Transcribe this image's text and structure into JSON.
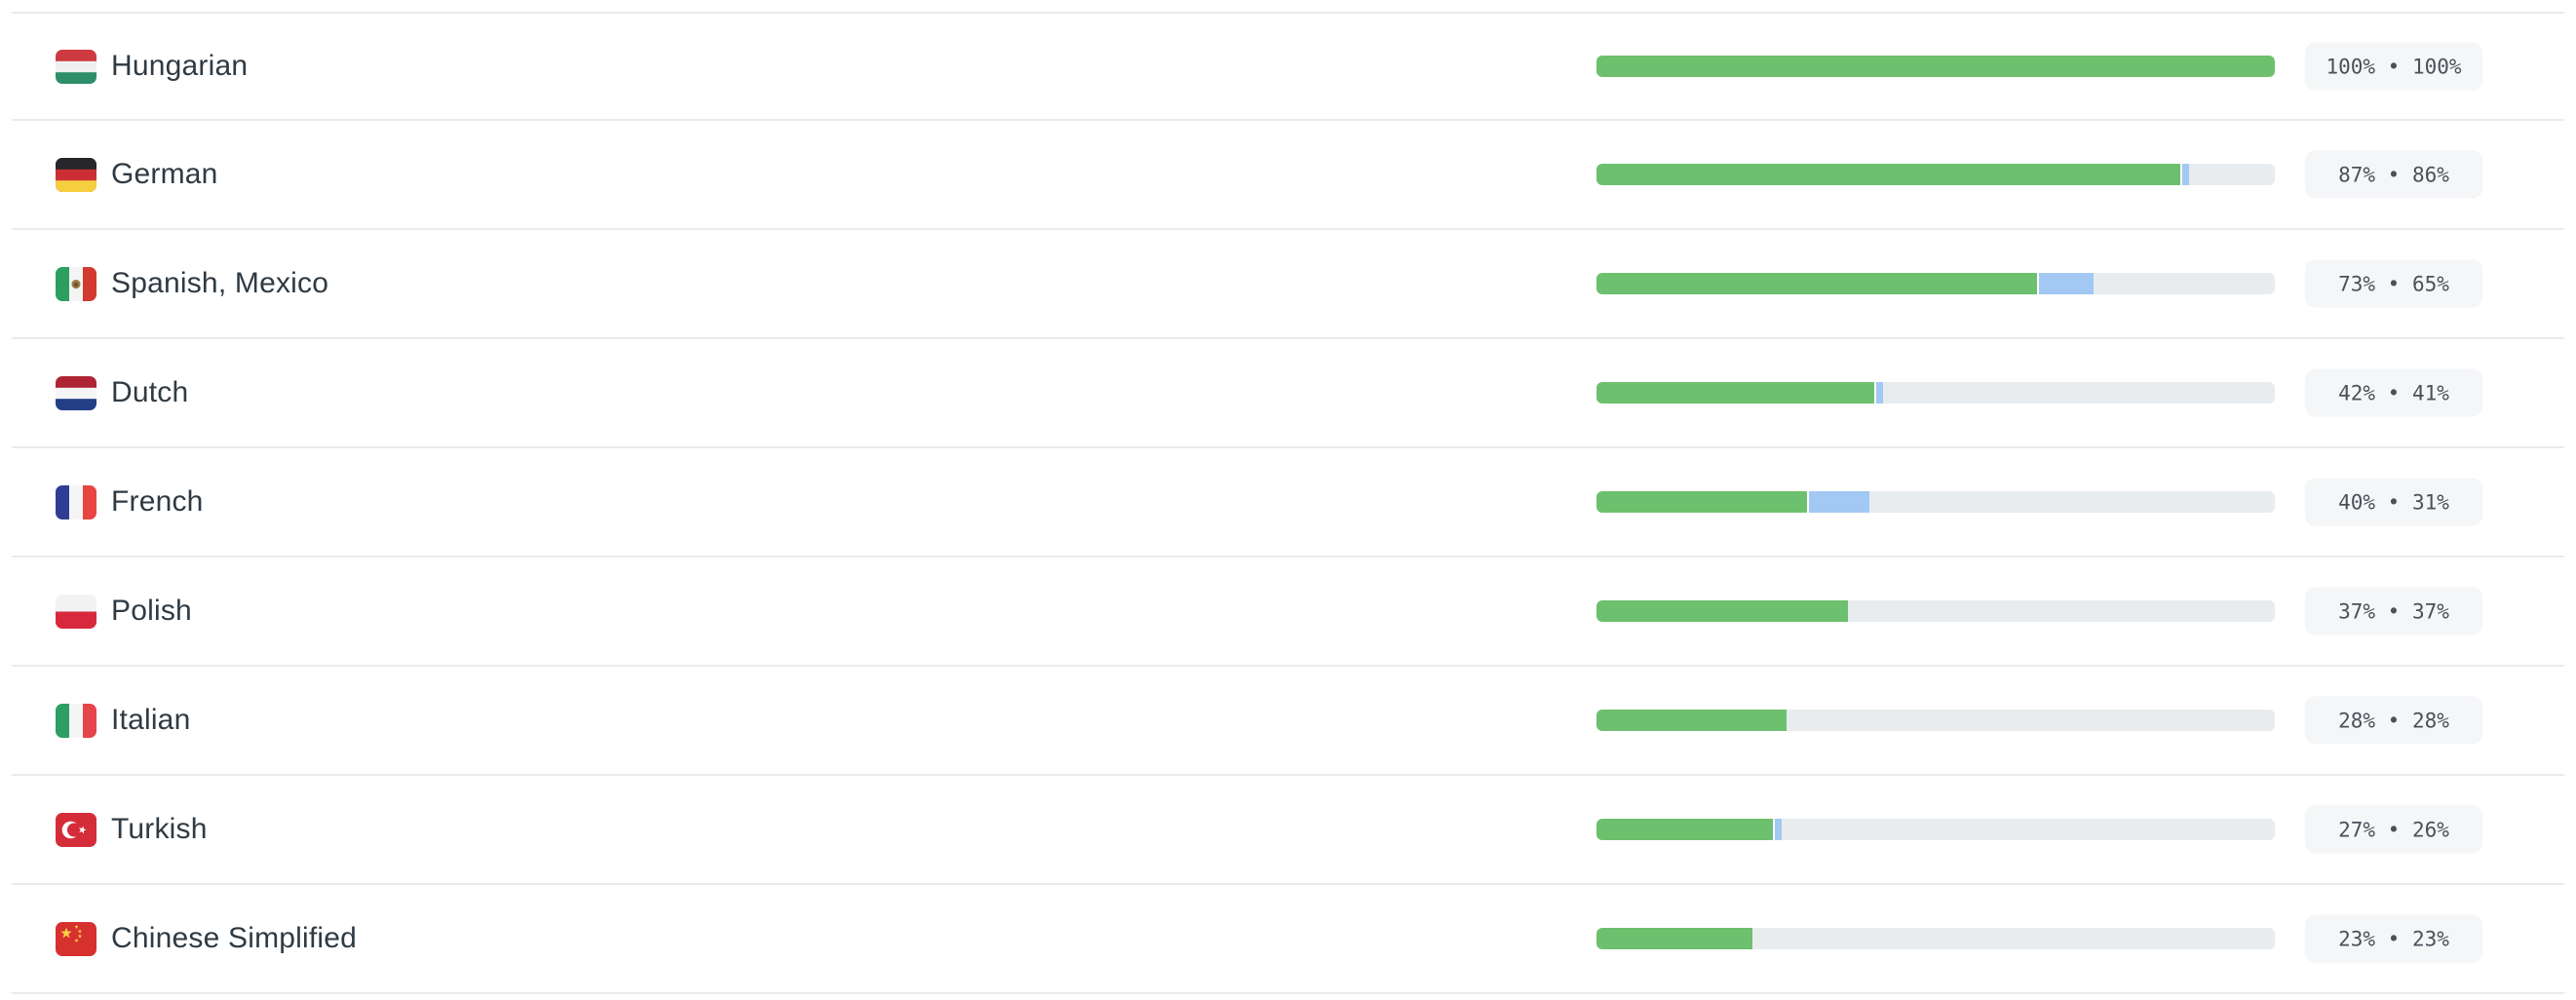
{
  "separator": "•",
  "colors": {
    "reviewed_green": "#6dc06d",
    "translated_blue": "#a3c8f4",
    "track_gray": "#e8ecef",
    "badge_bg": "#f4f6f8",
    "badge_text": "#4a5158",
    "label_text": "#2f3a43",
    "divider": "#e9ebec"
  },
  "rows": [
    {
      "name": "Hungarian",
      "flag": "hungary",
      "translated_pct": 100,
      "reviewed_pct": 100,
      "badge": "100% • 100%"
    },
    {
      "name": "German",
      "flag": "germany",
      "translated_pct": 87,
      "reviewed_pct": 86,
      "badge": "87% • 86%"
    },
    {
      "name": "Spanish, Mexico",
      "flag": "mexico",
      "translated_pct": 73,
      "reviewed_pct": 65,
      "badge": "73% • 65%"
    },
    {
      "name": "Dutch",
      "flag": "netherlands",
      "translated_pct": 42,
      "reviewed_pct": 41,
      "badge": "42% • 41%"
    },
    {
      "name": "French",
      "flag": "france",
      "translated_pct": 40,
      "reviewed_pct": 31,
      "badge": "40% • 31%"
    },
    {
      "name": "Polish",
      "flag": "poland",
      "translated_pct": 37,
      "reviewed_pct": 37,
      "badge": "37% • 37%"
    },
    {
      "name": "Italian",
      "flag": "italy",
      "translated_pct": 28,
      "reviewed_pct": 28,
      "badge": "28% • 28%"
    },
    {
      "name": "Turkish",
      "flag": "turkey",
      "translated_pct": 27,
      "reviewed_pct": 26,
      "badge": "27% • 26%"
    },
    {
      "name": "Chinese Simplified",
      "flag": "china",
      "translated_pct": 23,
      "reviewed_pct": 23,
      "badge": "23% • 23%"
    }
  ]
}
